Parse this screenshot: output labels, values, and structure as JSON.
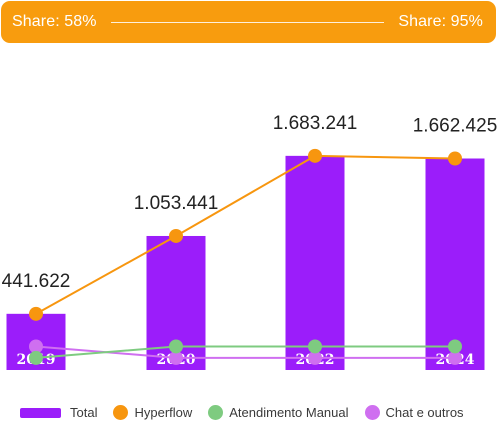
{
  "header": {
    "left_label": "Share: 58%",
    "right_label": "Share: 95%",
    "background": "#f89c0e"
  },
  "chart_data": {
    "type": "bar",
    "categories": [
      "2019",
      "2020",
      "2022",
      "2024"
    ],
    "series": [
      {
        "name": "Total",
        "type": "bar",
        "color": "#9b1dfa",
        "values": [
          441622,
          1053441,
          1683241,
          1662425
        ],
        "labels": [
          "441.622",
          "1.053.441",
          "1.683.241",
          "1.662.425"
        ]
      },
      {
        "name": "Hyperflow",
        "type": "line",
        "color": "#f7960f",
        "values": [
          441622,
          1053441,
          1683241,
          1662425
        ]
      },
      {
        "name": "Atendimento Manual",
        "type": "line",
        "color": "#7ecb80",
        "values": [
          95000,
          185000,
          185000,
          185000
        ]
      },
      {
        "name": "Chat e outros",
        "type": "line",
        "color": "#cf6ff0",
        "values": [
          185000,
          95000,
          95000,
          95000
        ]
      }
    ],
    "ylim": [
      0,
      1800000
    ],
    "grid": false,
    "legend_position": "bottom"
  }
}
